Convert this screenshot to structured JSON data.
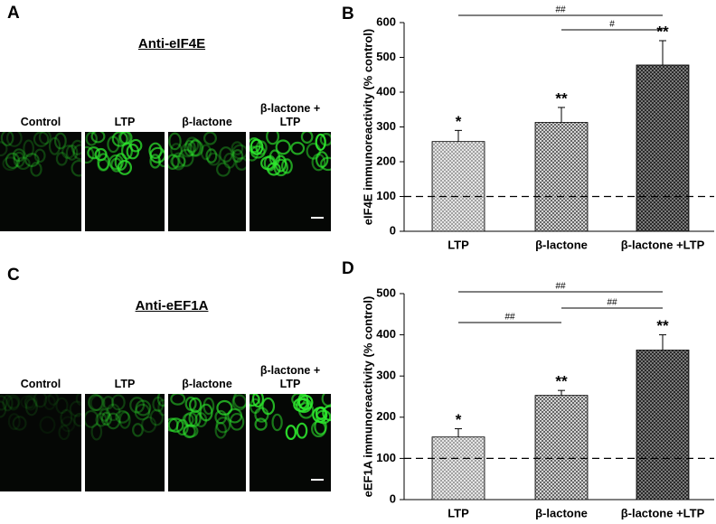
{
  "image_panels": [
    {
      "panel": "A",
      "title": "Anti-eIF4E",
      "labels": [
        "Control",
        "LTP",
        "β-lactone",
        "β-lactone + LTP"
      ]
    },
    {
      "panel": "C",
      "title": "Anti-eEF1A",
      "labels": [
        "Control",
        "LTP",
        "β-lactone",
        "β-lactone + LTP"
      ]
    }
  ],
  "chart_data": [
    {
      "type": "bar",
      "panel": "B",
      "y_label": "eIF4E immunoreactivity (% control)",
      "categories": [
        "LTP",
        "β-lactone",
        "β-lactone +LTP"
      ],
      "values": [
        258,
        313,
        478
      ],
      "errors": [
        32,
        43,
        70
      ],
      "annotations": [
        "*",
        "**",
        "**"
      ],
      "colors": [
        "#9a9a9a",
        "#5a5a5a",
        "#2a2a2a"
      ],
      "ylim": [
        0,
        600
      ],
      "yticks": [
        0,
        100,
        200,
        300,
        400,
        500,
        600
      ],
      "ref_line": 100,
      "comparisons": [
        {
          "from": 0,
          "to": 2,
          "label": "##"
        },
        {
          "from": 1,
          "to": 2,
          "label": "#"
        }
      ]
    },
    {
      "type": "bar",
      "panel": "D",
      "y_label": "eEF1A immunoreactivity (% control)",
      "categories": [
        "LTP",
        "β-lactone",
        "β-lactone +LTP"
      ],
      "values": [
        152,
        253,
        363
      ],
      "errors": [
        20,
        12,
        37
      ],
      "annotations": [
        "*",
        "**",
        "**"
      ],
      "colors": [
        "#9a9a9a",
        "#5a5a5a",
        "#2a2a2a"
      ],
      "ylim": [
        0,
        500
      ],
      "yticks": [
        0,
        100,
        200,
        300,
        400,
        500
      ],
      "ref_line": 100,
      "comparisons": [
        {
          "from": 0,
          "to": 2,
          "label": "##"
        },
        {
          "from": 1,
          "to": 2,
          "label": "##"
        },
        {
          "from": 0,
          "to": 1,
          "label": "##"
        }
      ]
    }
  ]
}
